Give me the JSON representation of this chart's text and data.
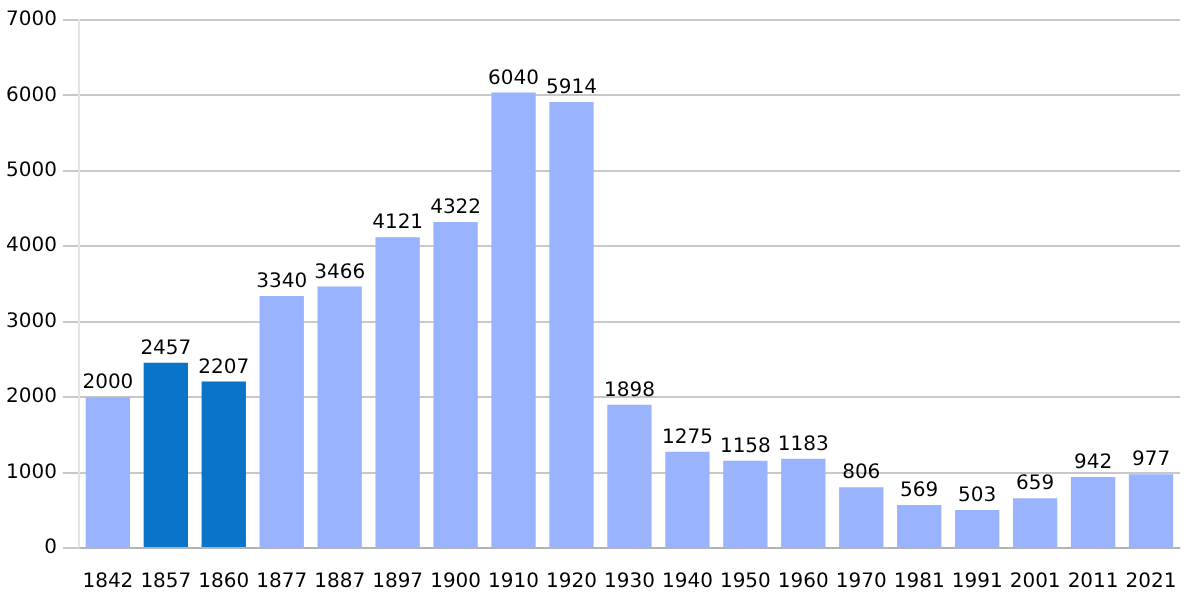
{
  "chart_data": {
    "type": "bar",
    "categories": [
      "1842",
      "1857",
      "1860",
      "1877",
      "1887",
      "1897",
      "1900",
      "1910",
      "1920",
      "1930",
      "1940",
      "1950",
      "1960",
      "1970",
      "1981",
      "1991",
      "2001",
      "2011",
      "2021"
    ],
    "values": [
      2000,
      2457,
      2207,
      3340,
      3466,
      4121,
      4322,
      6040,
      5914,
      1898,
      1275,
      1158,
      1183,
      806,
      569,
      503,
      659,
      942,
      977
    ],
    "colors": [
      "#99b3ff",
      "#0a75c8",
      "#0a75c8",
      "#99b3ff",
      "#99b3ff",
      "#99b3ff",
      "#99b3ff",
      "#99b3ff",
      "#99b3ff",
      "#99b3ff",
      "#99b3ff",
      "#99b3ff",
      "#99b3ff",
      "#99b3ff",
      "#99b3ff",
      "#99b3ff",
      "#99b3ff",
      "#99b3ff",
      "#99b3ff"
    ],
    "ylim": [
      0,
      7000
    ],
    "yticks": [
      0,
      1000,
      2000,
      3000,
      4000,
      5000,
      6000,
      7000
    ],
    "grid": "y",
    "data_labels": true,
    "legend": false
  }
}
